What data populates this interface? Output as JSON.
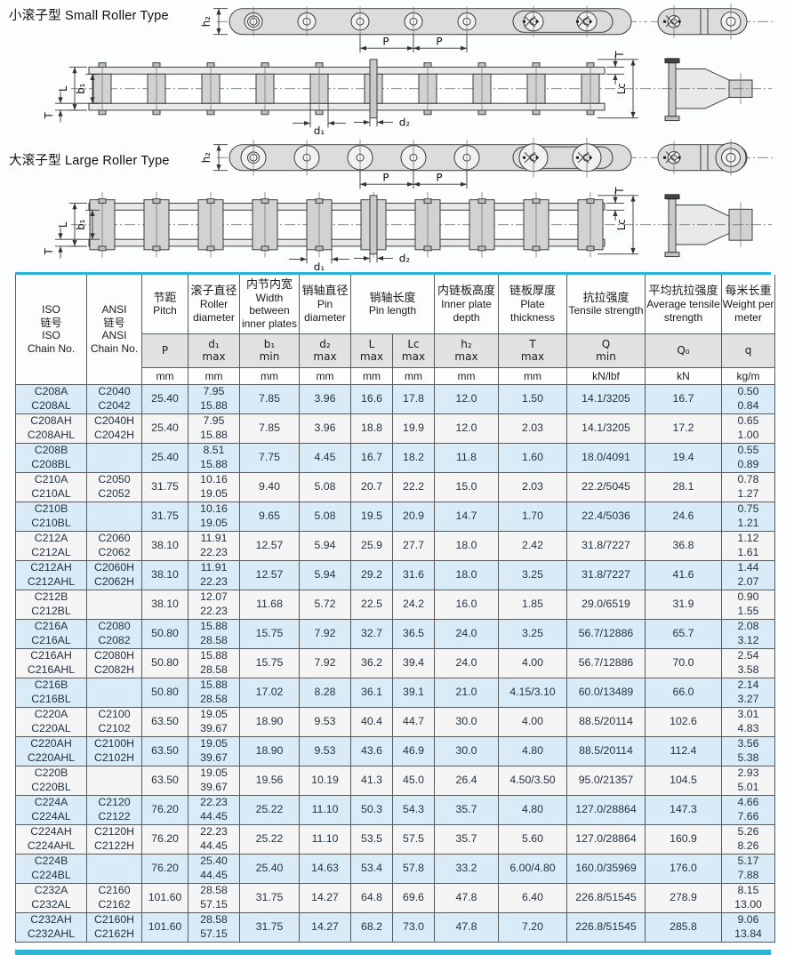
{
  "page": {
    "small_roller_label": "小滚子型 Small Roller Type",
    "large_roller_label": "大滚子型 Large Roller Type"
  },
  "dims": {
    "h2": "h₂",
    "p": "P",
    "l": "L",
    "b1": "b₁",
    "t": "T",
    "d1": "d₁",
    "d2": "d₂",
    "lc": "Lc"
  },
  "colors": {
    "accent_cyan": "#29b4d6",
    "row_blue": "#d8ebf6",
    "row_white": "#f5f5f6",
    "symbol_row_gray": "#e2e2e3",
    "metal_gray": "#dcdcdc"
  },
  "table": {
    "header": {
      "iso": [
        "ISO",
        "链号",
        "ISO",
        "Chain No."
      ],
      "ansi": [
        "ANSI",
        "链号",
        "ANSI",
        "Chain No."
      ],
      "groups": [
        {
          "key": "pitch",
          "cn": "节距",
          "en": "Pitch",
          "sub": [
            {
              "key": "p",
              "sym": [
                "P"
              ],
              "unit": "mm"
            }
          ]
        },
        {
          "key": "roller-diameter",
          "cn": "滚子直径",
          "en": "Roller diameter",
          "sub": [
            {
              "key": "d1",
              "sym": [
                "d₁",
                "max"
              ],
              "unit": "mm"
            }
          ]
        },
        {
          "key": "inner-width",
          "cn": "内节内宽",
          "en": "Width between inner plates",
          "sub": [
            {
              "key": "b1",
              "sym": [
                "b₁",
                "min"
              ],
              "unit": "mm"
            }
          ]
        },
        {
          "key": "pin-diameter",
          "cn": "销轴直径",
          "en": "Pin diameter",
          "sub": [
            {
              "key": "d2",
              "sym": [
                "d₂",
                "max"
              ],
              "unit": "mm"
            }
          ]
        },
        {
          "key": "pin-length",
          "cn": "销轴长度",
          "en": "Pin length",
          "sub": [
            {
              "key": "l",
              "sym": [
                "L",
                "max"
              ],
              "unit": "mm"
            },
            {
              "key": "lc",
              "sym": [
                "Lc",
                "max"
              ],
              "unit": "mm"
            }
          ]
        },
        {
          "key": "plate-depth",
          "cn": "内链板高度",
          "en": "Inner plate depth",
          "sub": [
            {
              "key": "h2",
              "sym": [
                "h₂",
                "max"
              ],
              "unit": "mm"
            }
          ]
        },
        {
          "key": "plate-thickness",
          "cn": "链板厚度",
          "en": "Plate thickness",
          "sub": [
            {
              "key": "t",
              "sym": [
                "T",
                "max"
              ],
              "unit": "mm"
            }
          ]
        },
        {
          "key": "tensile-strength",
          "cn": "抗拉强度",
          "en": "Tensile strength",
          "sub": [
            {
              "key": "q",
              "sym": [
                "Q",
                "min"
              ],
              "unit": "kN/lbf"
            }
          ]
        },
        {
          "key": "avg-tensile-strength",
          "cn": "平均抗拉强度",
          "en": "Average tensile strength",
          "sub": [
            {
              "key": "q0",
              "sym": [
                "Q₀"
              ],
              "unit": "kN"
            }
          ]
        },
        {
          "key": "weight",
          "cn": "每米长重",
          "en": "Weight per meter",
          "sub": [
            {
              "key": "wt",
              "sym": [
                "q"
              ],
              "unit": "kg/m"
            }
          ]
        }
      ]
    },
    "rows": [
      {
        "iso": [
          "C208A",
          "C208AL"
        ],
        "ansi": [
          "C2040",
          "C2042"
        ],
        "p": "25.40",
        "d1": [
          "7.95",
          "15.88"
        ],
        "b1": "7.85",
        "d2": "3.96",
        "l": "16.6",
        "lc": "17.8",
        "h2": "12.0",
        "t": "1.50",
        "q": "14.1/3205",
        "q0": "16.7",
        "wt": [
          "0.50",
          "0.84"
        ]
      },
      {
        "iso": [
          "C208AH",
          "C208AHL"
        ],
        "ansi": [
          "C2040H",
          "C2042H"
        ],
        "p": "25.40",
        "d1": [
          "7.95",
          "15.88"
        ],
        "b1": "7.85",
        "d2": "3.96",
        "l": "18.8",
        "lc": "19.9",
        "h2": "12.0",
        "t": "2.03",
        "q": "14.1/3205",
        "q0": "17.2",
        "wt": [
          "0.65",
          "1.00"
        ]
      },
      {
        "iso": [
          "C208B",
          "C208BL"
        ],
        "ansi": [],
        "p": "25.40",
        "d1": [
          "8.51",
          "15.88"
        ],
        "b1": "7.75",
        "d2": "4.45",
        "l": "16.7",
        "lc": "18.2",
        "h2": "11.8",
        "t": "1.60",
        "q": "18.0/4091",
        "q0": "19.4",
        "wt": [
          "0.55",
          "0.89"
        ]
      },
      {
        "iso": [
          "C210A",
          "C210AL"
        ],
        "ansi": [
          "C2050",
          "C2052"
        ],
        "p": "31.75",
        "d1": [
          "10.16",
          "19.05"
        ],
        "b1": "9.40",
        "d2": "5.08",
        "l": "20.7",
        "lc": "22.2",
        "h2": "15.0",
        "t": "2.03",
        "q": "22.2/5045",
        "q0": "28.1",
        "wt": [
          "0.78",
          "1.27"
        ]
      },
      {
        "iso": [
          "C210B",
          "C210BL"
        ],
        "ansi": [],
        "p": "31.75",
        "d1": [
          "10.16",
          "19.05"
        ],
        "b1": "9.65",
        "d2": "5.08",
        "l": "19.5",
        "lc": "20.9",
        "h2": "14.7",
        "t": "1.70",
        "q": "22.4/5036",
        "q0": "24.6",
        "wt": [
          "0.75",
          "1.21"
        ]
      },
      {
        "iso": [
          "C212A",
          "C212AL"
        ],
        "ansi": [
          "C2060",
          "C2062"
        ],
        "p": "38.10",
        "d1": [
          "11.91",
          "22.23"
        ],
        "b1": "12.57",
        "d2": "5.94",
        "l": "25.9",
        "lc": "27.7",
        "h2": "18.0",
        "t": "2.42",
        "q": "31.8/7227",
        "q0": "36.8",
        "wt": [
          "1.12",
          "1.61"
        ]
      },
      {
        "iso": [
          "C212AH",
          "C212AHL"
        ],
        "ansi": [
          "C2060H",
          "C2062H"
        ],
        "p": "38.10",
        "d1": [
          "11.91",
          "22.23"
        ],
        "b1": "12.57",
        "d2": "5.94",
        "l": "29.2",
        "lc": "31.6",
        "h2": "18.0",
        "t": "3.25",
        "q": "31.8/7227",
        "q0": "41.6",
        "wt": [
          "1.44",
          "2.07"
        ]
      },
      {
        "iso": [
          "C212B",
          "C212BL"
        ],
        "ansi": [],
        "p": "38.10",
        "d1": [
          "12.07",
          "22.23"
        ],
        "b1": "11.68",
        "d2": "5.72",
        "l": "22.5",
        "lc": "24.2",
        "h2": "16.0",
        "t": "1.85",
        "q": "29.0/6519",
        "q0": "31.9",
        "wt": [
          "0.90",
          "1.55"
        ]
      },
      {
        "iso": [
          "C216A",
          "C216AL"
        ],
        "ansi": [
          "C2080",
          "C2082"
        ],
        "p": "50.80",
        "d1": [
          "15.88",
          "28.58"
        ],
        "b1": "15.75",
        "d2": "7.92",
        "l": "32.7",
        "lc": "36.5",
        "h2": "24.0",
        "t": "3.25",
        "q": "56.7/12886",
        "q0": "65.7",
        "wt": [
          "2.08",
          "3.12"
        ]
      },
      {
        "iso": [
          "C216AH",
          "C216AHL"
        ],
        "ansi": [
          "C2080H",
          "C2082H"
        ],
        "p": "50.80",
        "d1": [
          "15.88",
          "28.58"
        ],
        "b1": "15.75",
        "d2": "7.92",
        "l": "36.2",
        "lc": "39.4",
        "h2": "24.0",
        "t": "4.00",
        "q": "56.7/12886",
        "q0": "70.0",
        "wt": [
          "2.54",
          "3.58"
        ]
      },
      {
        "iso": [
          "C216B",
          "C216BL"
        ],
        "ansi": [],
        "p": "50.80",
        "d1": [
          "15.88",
          "28.58"
        ],
        "b1": "17.02",
        "d2": "8.28",
        "l": "36.1",
        "lc": "39.1",
        "h2": "21.0",
        "t": "4.15/3.10",
        "q": "60.0/13489",
        "q0": "66.0",
        "wt": [
          "2.14",
          "3.27"
        ]
      },
      {
        "iso": [
          "C220A",
          "C220AL"
        ],
        "ansi": [
          "C2100",
          "C2102"
        ],
        "p": "63.50",
        "d1": [
          "19.05",
          "39.67"
        ],
        "b1": "18.90",
        "d2": "9.53",
        "l": "40.4",
        "lc": "44.7",
        "h2": "30.0",
        "t": "4.00",
        "q": "88.5/20114",
        "q0": "102.6",
        "wt": [
          "3.01",
          "4.83"
        ]
      },
      {
        "iso": [
          "C220AH",
          "C220AHL"
        ],
        "ansi": [
          "C2100H",
          "C2102H"
        ],
        "p": "63.50",
        "d1": [
          "19.05",
          "39.67"
        ],
        "b1": "18.90",
        "d2": "9.53",
        "l": "43.6",
        "lc": "46.9",
        "h2": "30.0",
        "t": "4.80",
        "q": "88.5/20114",
        "q0": "112.4",
        "wt": [
          "3.56",
          "5.38"
        ]
      },
      {
        "iso": [
          "C220B",
          "C220BL"
        ],
        "ansi": [],
        "p": "63.50",
        "d1": [
          "19.05",
          "39.67"
        ],
        "b1": "19.56",
        "d2": "10.19",
        "l": "41.3",
        "lc": "45.0",
        "h2": "26.4",
        "t": "4.50/3.50",
        "q": "95.0/21357",
        "q0": "104.5",
        "wt": [
          "2.93",
          "5.01"
        ]
      },
      {
        "iso": [
          "C224A",
          "C224AL"
        ],
        "ansi": [
          "C2120",
          "C2122"
        ],
        "p": "76.20",
        "d1": [
          "22.23",
          "44.45"
        ],
        "b1": "25.22",
        "d2": "11.10",
        "l": "50.3",
        "lc": "54.3",
        "h2": "35.7",
        "t": "4.80",
        "q": "127.0/28864",
        "q0": "147.3",
        "wt": [
          "4.66",
          "7.66"
        ]
      },
      {
        "iso": [
          "C224AH",
          "C224AHL"
        ],
        "ansi": [
          "C2120H",
          "C2122H"
        ],
        "p": "76.20",
        "d1": [
          "22.23",
          "44.45"
        ],
        "b1": "25.22",
        "d2": "11.10",
        "l": "53.5",
        "lc": "57.5",
        "h2": "35.7",
        "t": "5.60",
        "q": "127.0/28864",
        "q0": "160.9",
        "wt": [
          "5.26",
          "8.26"
        ]
      },
      {
        "iso": [
          "C224B",
          "C224BL"
        ],
        "ansi": [],
        "p": "76.20",
        "d1": [
          "25.40",
          "44.45"
        ],
        "b1": "25.40",
        "d2": "14.63",
        "l": "53.4",
        "lc": "57.8",
        "h2": "33.2",
        "t": "6.00/4.80",
        "q": "160.0/35969",
        "q0": "176.0",
        "wt": [
          "5.17",
          "7.88"
        ]
      },
      {
        "iso": [
          "C232A",
          "C232AL"
        ],
        "ansi": [
          "C2160",
          "C2162"
        ],
        "p": "101.60",
        "d1": [
          "28.58",
          "57.15"
        ],
        "b1": "31.75",
        "d2": "14.27",
        "l": "64.8",
        "lc": "69.6",
        "h2": "47.8",
        "t": "6.40",
        "q": "226.8/51545",
        "q0": "278.9",
        "wt": [
          "8.15",
          "13.00"
        ]
      },
      {
        "iso": [
          "C232AH",
          "C232AHL"
        ],
        "ansi": [
          "C2160H",
          "C2162H"
        ],
        "p": "101.60",
        "d1": [
          "28.58",
          "57.15"
        ],
        "b1": "31.75",
        "d2": "14.27",
        "l": "68.2",
        "lc": "73.0",
        "h2": "47.8",
        "t": "7.20",
        "q": "226.8/51545",
        "q0": "285.8",
        "wt": [
          "9.06",
          "13.84"
        ]
      }
    ]
  }
}
